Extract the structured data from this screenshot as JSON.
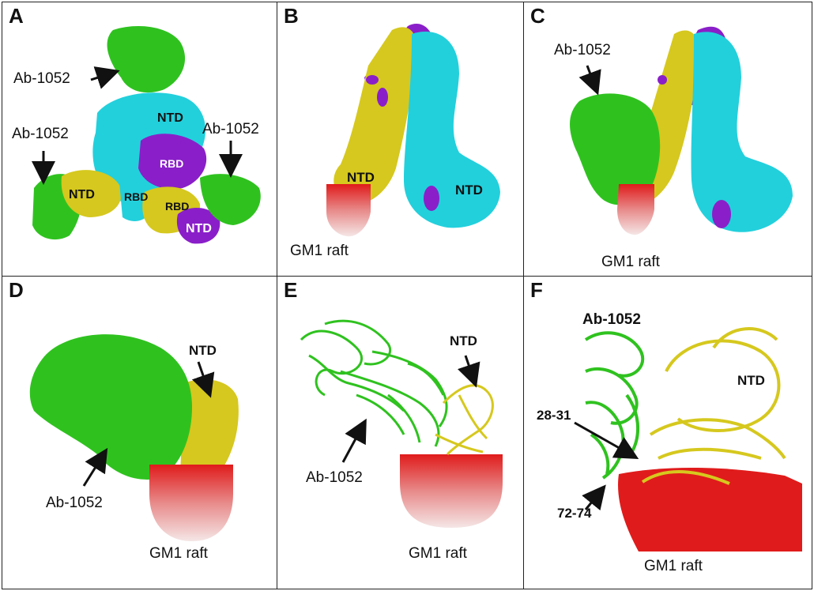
{
  "colors": {
    "ab_green": "#2fc21f",
    "ntd_yellow": "#d6c81e",
    "cyan": "#22d0dc",
    "purple": "#8a1fc9",
    "raft_red": "#e01b1b",
    "border": "#222222"
  },
  "panels": {
    "A": {
      "label": "A",
      "ab_top": "Ab-1052",
      "ab_left": "Ab-1052",
      "ab_right": "Ab-1052",
      "ntd_top": "NTD",
      "rbd_center": "RBD",
      "ntd_left": "NTD",
      "rbd_left": "RBD",
      "rbd_right": "RBD",
      "ntd_bottom": "NTD"
    },
    "B": {
      "label": "B",
      "ntd_left": "NTD",
      "ntd_right": "NTD",
      "raft": "GM1 raft"
    },
    "C": {
      "label": "C",
      "ab": "Ab-1052",
      "raft": "GM1 raft"
    },
    "D": {
      "label": "D",
      "ntd": "NTD",
      "ab": "Ab-1052",
      "raft": "GM1 raft"
    },
    "E": {
      "label": "E",
      "ntd": "NTD",
      "ab": "Ab-1052",
      "raft": "GM1 raft"
    },
    "F": {
      "label": "F",
      "ab": "Ab-1052",
      "ntd": "NTD",
      "loop1": "28-31",
      "loop2": "72-74",
      "raft": "GM1 raft"
    }
  }
}
